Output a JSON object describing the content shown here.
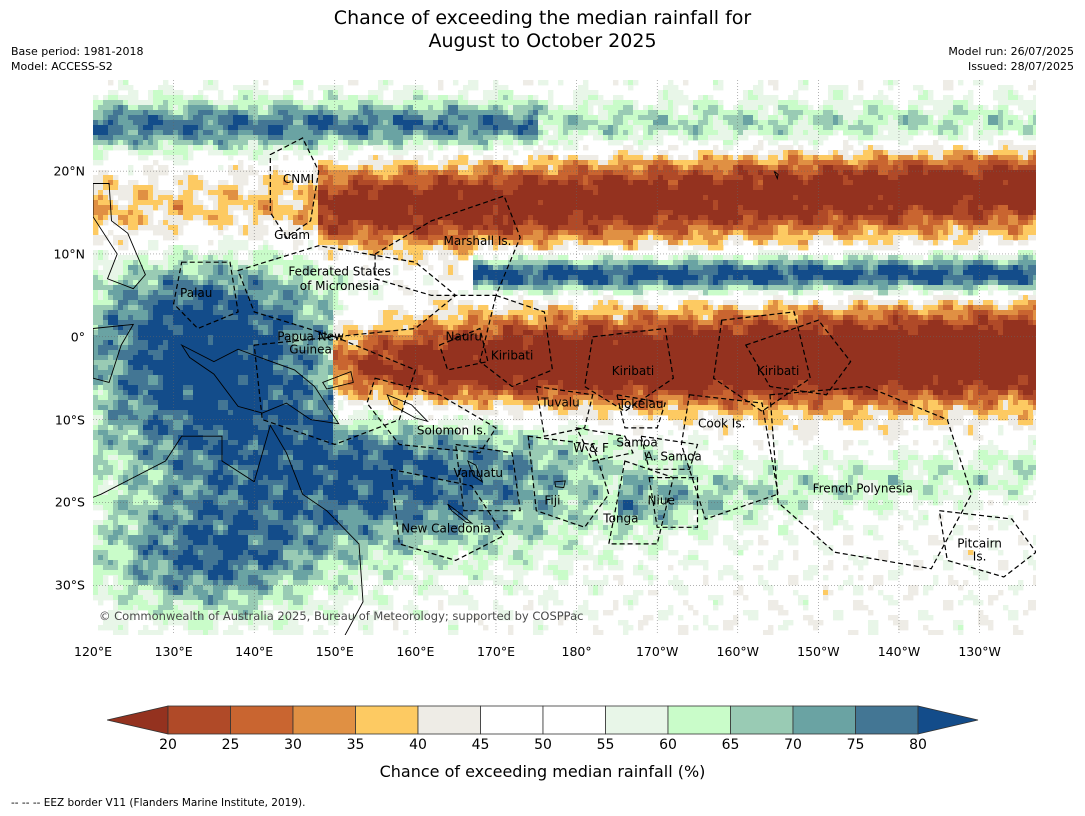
{
  "header": {
    "title_line1": "Chance of exceeding the median rainfall for",
    "title_line2": "August to October 2025",
    "base_period": "Base period: 1981-2018",
    "model": "Model: ACCESS-S2",
    "model_run": "Model run: 26/07/2025",
    "issued": "Issued: 28/07/2025"
  },
  "map": {
    "lon_ticks": [
      "120°E",
      "130°E",
      "140°E",
      "150°E",
      "160°E",
      "170°E",
      "180°",
      "170°W",
      "160°W",
      "150°W",
      "140°W",
      "130°W"
    ],
    "lat_ticks": [
      "20°N",
      "10°N",
      "0°",
      "10°S",
      "20°S",
      "30°S"
    ],
    "lon_range_deg_east": [
      120,
      237
    ],
    "lat_range_deg": [
      -36,
      31
    ],
    "regions": [
      {
        "label": "CNMI",
        "lon": 145.5,
        "lat": 19.0
      },
      {
        "label": "Guam",
        "lon": 144.7,
        "lat": 12.2
      },
      {
        "label": "Marshall Is.",
        "lon": 167.7,
        "lat": 11.5
      },
      {
        "label": "Federated States",
        "lon": 150.6,
        "lat": 7.8
      },
      {
        "label": "of Micronesia",
        "lon": 150.6,
        "lat": 6.1
      },
      {
        "label": "Palau",
        "lon": 132.8,
        "lat": 5.2
      },
      {
        "label": "Papua New",
        "lon": 147.0,
        "lat": 0.0
      },
      {
        "label": "Guinea",
        "lon": 147.0,
        "lat": -1.6
      },
      {
        "label": "Nauru",
        "lon": 166.0,
        "lat": 0.0
      },
      {
        "label": "Kiribati",
        "lon": 172.0,
        "lat": -2.3
      },
      {
        "label": "Kiribati",
        "lon": 187.0,
        "lat": -4.2
      },
      {
        "label": "Kiribati",
        "lon": 205.0,
        "lat": -4.2
      },
      {
        "label": "Tuvalu",
        "lon": 178.0,
        "lat": -8.0
      },
      {
        "label": "Tokelau",
        "lon": 188.0,
        "lat": -8.2
      },
      {
        "label": "Cook Is.",
        "lon": 198.0,
        "lat": -10.5
      },
      {
        "label": "Solomon Is.",
        "lon": 164.5,
        "lat": -11.4
      },
      {
        "label": "Samoa",
        "lon": 187.5,
        "lat": -12.8
      },
      {
        "label": "W & F",
        "lon": 181.8,
        "lat": -13.5
      },
      {
        "label": "A. Samoa",
        "lon": 192.0,
        "lat": -14.5
      },
      {
        "label": "Vanuatu",
        "lon": 167.8,
        "lat": -16.5
      },
      {
        "label": "French Polynesia",
        "lon": 215.5,
        "lat": -18.4
      },
      {
        "label": "Fiji",
        "lon": 177.0,
        "lat": -19.8
      },
      {
        "label": "Niue",
        "lon": 190.5,
        "lat": -19.8
      },
      {
        "label": "Tonga",
        "lon": 185.5,
        "lat": -22.0
      },
      {
        "label": "New Caledonia",
        "lon": 163.8,
        "lat": -23.2
      },
      {
        "label": "Pitcairn",
        "lon": 230.0,
        "lat": -25.0
      },
      {
        "label": "Is.",
        "lon": 230.0,
        "lat": -26.6
      }
    ],
    "copyright": "© Commonwealth of Australia 2025, Bureau of Meteorology; supported by COSPPac"
  },
  "colorbar": {
    "ticks": [
      "20",
      "25",
      "30",
      "35",
      "40",
      "45",
      "50",
      "55",
      "60",
      "65",
      "70",
      "75",
      "80"
    ],
    "colors": [
      "#94321f",
      "#b04a28",
      "#c96530",
      "#e09043",
      "#fdca62",
      "#eeece6",
      "#ffffff",
      "#ffffff",
      "#e8f6e8",
      "#c9fcc9",
      "#99cbb4",
      "#6aa3a3",
      "#437694",
      "#134c8a"
    ],
    "label": "Chance of exceeding median rainfall (%)"
  },
  "footer": {
    "note": "--  --  -- EEZ border V11 (Flanders Marine Institute, 2019)."
  }
}
